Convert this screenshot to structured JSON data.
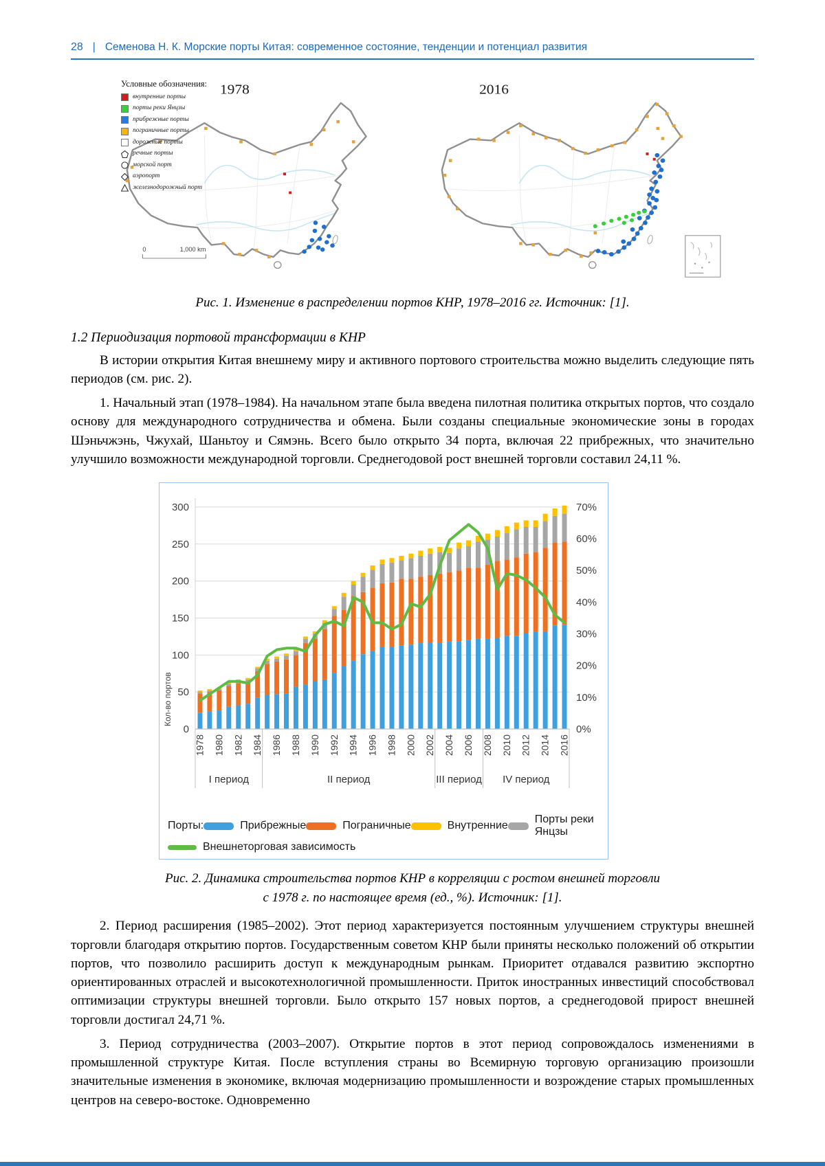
{
  "header": {
    "page_number": "28",
    "separator": "|",
    "title": "Семенова Н. К. Морские порты Китая: современное состояние, тенденции и потенциал развития"
  },
  "fig1": {
    "legend_title": "Условные обозначения:",
    "legend_items": [
      {
        "label": "внутренние порты",
        "color": "#D01F1F",
        "shape": "square"
      },
      {
        "label": "порты реки Янцзы",
        "color": "#35D435",
        "shape": "square"
      },
      {
        "label": "прибрежные порты",
        "color": "#1F7FE8",
        "shape": "square"
      },
      {
        "label": "пограничные порты",
        "color": "#F2B705",
        "shape": "square"
      },
      {
        "label": "дорожные порты",
        "color": "#FFFFFF",
        "shape": "square-outline"
      },
      {
        "label": "речные порты",
        "shape": "pentagon"
      },
      {
        "label": "морской порт",
        "shape": "circle"
      },
      {
        "label": "аэропорт",
        "shape": "diamond"
      },
      {
        "label": "железнодорожный порт",
        "shape": "triangle"
      }
    ],
    "map_left_year": "1978",
    "map_right_year": "2016",
    "scale_zero": "0",
    "scale_label": "1,000 km",
    "caption": "Рис. 1. Изменение в распределении портов КНР, 1978–2016 гг. Источник: [1]."
  },
  "section": {
    "heading": "1.2 Периодизация портовой трансформации в КНР"
  },
  "content": {
    "p1": "В истории открытия Китая внешнему миру и активного портового строительства можно выделить следующие пять периодов (см. рис. 2).",
    "p2": "1. Начальный этап (1978–1984). На начальном этапе была введена пилотная политика открытых портов, что создало основу для международного сотрудничества и обмена. Были созданы специальные экономические зоны в городах Шэньчжэнь, Чжухай, Шаньтоу и Сямэнь. Всего было открыто 34 порта, включая 22 прибрежных, что значительно улучшило возможности международной торговли. Среднегодовой рост внешней торговли составил 24,11 %.",
    "p3": "2. Период расширения (1985–2002). Этот период характеризуется постоянным улучшением структуры внешней торговли благодаря открытию портов. Государственным советом КНР были приняты несколько положений об открытии портов, что позволило расширить доступ к международным рынкам. Приоритет отдавался развитию экспортно ориентированных отраслей и высокотехнологичной промышленности. Приток иностранных инвестиций способствовал оптимизации структуры внешней торговли. Было открыто 157 новых портов, а среднегодовой прирост внешней торговли достигал 24,71 %.",
    "p4": "3. Период сотрудничества (2003–2007). Открытие портов в этот период сопровождалось изменениями в промышленной структуре Китая. После вступления страны во Всемирную торговую организацию произошли значительные изменения в экономике, включая модернизацию промышленности и возрождение старых промышленных центров на северо-востоке. Одновременно"
  },
  "fig2": {
    "caption_line1": "Рис. 2. Динамика строительства портов КНР в корреляции с ростом внешней торговли",
    "caption_line2": "с 1978 г. по настоящее время (ед., %). Источник: [1]."
  },
  "chart_data": {
    "type": "bar",
    "title": "",
    "xlabel": "",
    "ylabel": "Кол-во портов",
    "left_ticks": [
      0,
      50,
      100,
      150,
      200,
      250,
      300
    ],
    "right_ticks": [
      "0%",
      "10%",
      "20%",
      "30%",
      "40%",
      "50%",
      "60%",
      "70%"
    ],
    "ylim_left": [
      0,
      300
    ],
    "ylim_right_percent": [
      0,
      70
    ],
    "grid": true,
    "legend_prefix": "Порты:",
    "x": [
      "1978",
      "1979",
      "1980",
      "1981",
      "1982",
      "1983",
      "1984",
      "1985",
      "1986",
      "1987",
      "1988",
      "1989",
      "1990",
      "1991",
      "1992",
      "1993",
      "1994",
      "1995",
      "1996",
      "1997",
      "1998",
      "1999",
      "2000",
      "2001",
      "2002",
      "2003",
      "2004",
      "2005",
      "2006",
      "2007",
      "2008",
      "2009",
      "2010",
      "2011",
      "2012",
      "2013",
      "2014",
      "2015",
      "2016"
    ],
    "series": [
      {
        "name": "Прибрежные",
        "color": "#3FA0E0",
        "values": [
          22,
          24,
          25,
          30,
          32,
          34,
          42,
          46,
          47,
          48,
          57,
          60,
          65,
          67,
          76,
          85,
          92,
          101,
          105,
          111,
          111,
          113,
          114,
          116,
          117,
          117,
          118,
          118,
          120,
          122,
          122,
          123,
          126,
          126,
          130,
          131,
          132,
          140,
          141
        ]
      },
      {
        "name": "Пограничные",
        "color": "#ED7023",
        "values": [
          26,
          26,
          27,
          28,
          30,
          30,
          36,
          42,
          44,
          46,
          43,
          56,
          57,
          68,
          77,
          76,
          88,
          84,
          86,
          86,
          87,
          90,
          89,
          90,
          91,
          93,
          94,
          96,
          98,
          96,
          100,
          104,
          103,
          106,
          107,
          108,
          113,
          112,
          112
        ]
      },
      {
        "name": "Порты реки Янцзы",
        "color": "#A6A6A6",
        "values": [
          2,
          2,
          2,
          3,
          3,
          3,
          4,
          4,
          4,
          5,
          5,
          6,
          7,
          8,
          9,
          18,
          15,
          21,
          24,
          26,
          27,
          25,
          28,
          28,
          29,
          29,
          26,
          30,
          29,
          35,
          34,
          33,
          36,
          38,
          36,
          34,
          36,
          36,
          38
        ]
      },
      {
        "name": "Внутренние",
        "color": "#FFC000",
        "values": [
          2,
          2,
          2,
          2,
          2,
          2,
          2,
          3,
          3,
          3,
          3,
          3,
          3,
          4,
          4,
          5,
          5,
          5,
          6,
          6,
          6,
          6,
          6,
          7,
          7,
          7,
          7,
          8,
          8,
          8,
          8,
          9,
          9,
          9,
          9,
          9,
          10,
          10,
          11
        ]
      }
    ],
    "line": {
      "name": "Внешнеторговая зависимость",
      "color": "#5FBB46",
      "unit": "%",
      "values": [
        9,
        11,
        13,
        15,
        15,
        14.5,
        17,
        23,
        25,
        25.5,
        25.5,
        24.5,
        29.5,
        33,
        34,
        32.5,
        41.5,
        40,
        33.5,
        33.5,
        31.5,
        33,
        39.5,
        38.5,
        42.5,
        51.5,
        59.5,
        62,
        64.5,
        62,
        57,
        44,
        49,
        48.5,
        47,
        44.5,
        41.5,
        36,
        33.5
      ]
    },
    "periods": [
      {
        "label": "I период",
        "from": 1978,
        "to": 1984
      },
      {
        "label": "II период",
        "from": 1985,
        "to": 2002
      },
      {
        "label": "III период",
        "from": 2003,
        "to": 2007
      },
      {
        "label": "IV период",
        "from": 2008,
        "to": 2016
      }
    ]
  }
}
